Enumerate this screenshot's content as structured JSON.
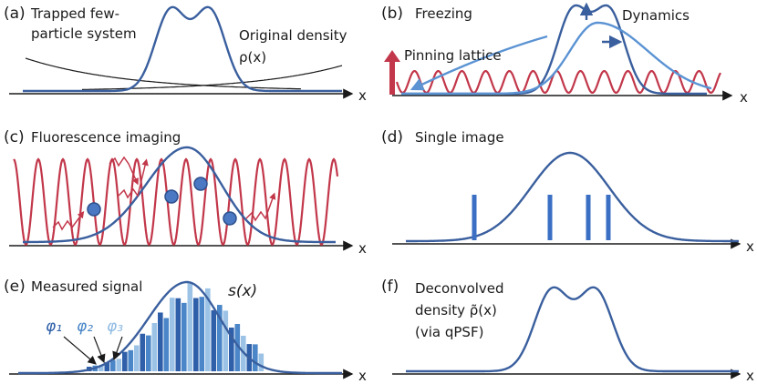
{
  "panels": [
    {
      "label": "(a)",
      "title": [
        "Trapped few-",
        "particle system"
      ],
      "annotations": [
        "Original density",
        "ρ(x)"
      ],
      "axis_label": "x"
    },
    {
      "label": "(b)",
      "title": [
        "Freezing"
      ],
      "annotations": [
        "Dynamics",
        "Pinning lattice"
      ],
      "axis_label": "x"
    },
    {
      "label": "(c)",
      "title": [
        "Fluorescence imaging"
      ],
      "annotations": [],
      "axis_label": "x"
    },
    {
      "label": "(d)",
      "title": [
        "Single image"
      ],
      "annotations": [],
      "axis_label": "x"
    },
    {
      "label": "(e)",
      "title": [
        "Measured signal"
      ],
      "annotations": [
        "s(x)",
        "φ₁",
        "φ₂",
        "φ₃"
      ],
      "axis_label": "x"
    },
    {
      "label": "(f)",
      "title": [
        "Deconvolved",
        "density ρ̃(x)",
        "(via qPSF)"
      ],
      "annotations": [],
      "axis_label": "x"
    }
  ]
}
